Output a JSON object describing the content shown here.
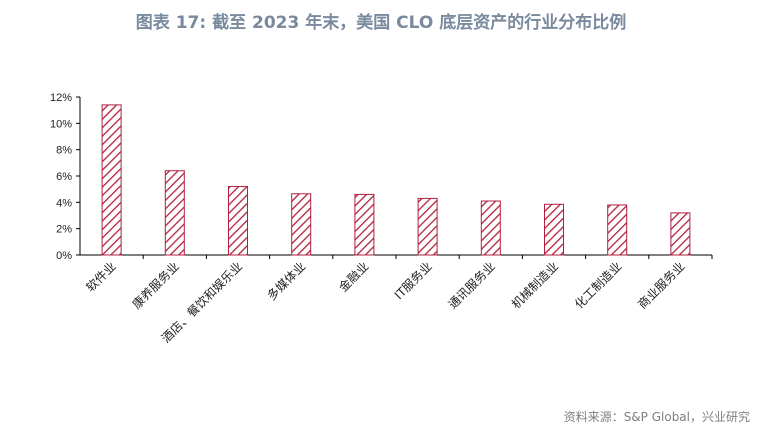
{
  "title": "图表 17: 截至 2023 年末，美国 CLO 底层资产的行业分布比例",
  "source": "资料来源：S&P Global，兴业研究",
  "colors": {
    "bar_stroke": "#b2203f",
    "hatch": "#b2203f",
    "axis": "#000000",
    "title": "#7a8a9e"
  },
  "chart_data": {
    "type": "bar",
    "title": "图表 17: 截至 2023 年末，美国 CLO 底层资产的行业分布比例",
    "xlabel": "",
    "ylabel": "",
    "ylim": [
      0,
      12
    ],
    "yticks": [
      0,
      2,
      4,
      6,
      8,
      10,
      12
    ],
    "ytick_labels": [
      "0%",
      "2%",
      "4%",
      "6%",
      "8%",
      "10%",
      "12%"
    ],
    "grid": false,
    "legend": "none",
    "categories": [
      "软件业",
      "康养服务业",
      "酒店、餐饮和娱乐业",
      "多媒体业",
      "金融业",
      "IT服务业",
      "通讯服务业",
      "机械制造业",
      "化工制造业",
      "商业服务业"
    ],
    "values": [
      11.4,
      6.4,
      5.2,
      4.65,
      4.6,
      4.3,
      4.1,
      3.85,
      3.8,
      3.2
    ]
  }
}
